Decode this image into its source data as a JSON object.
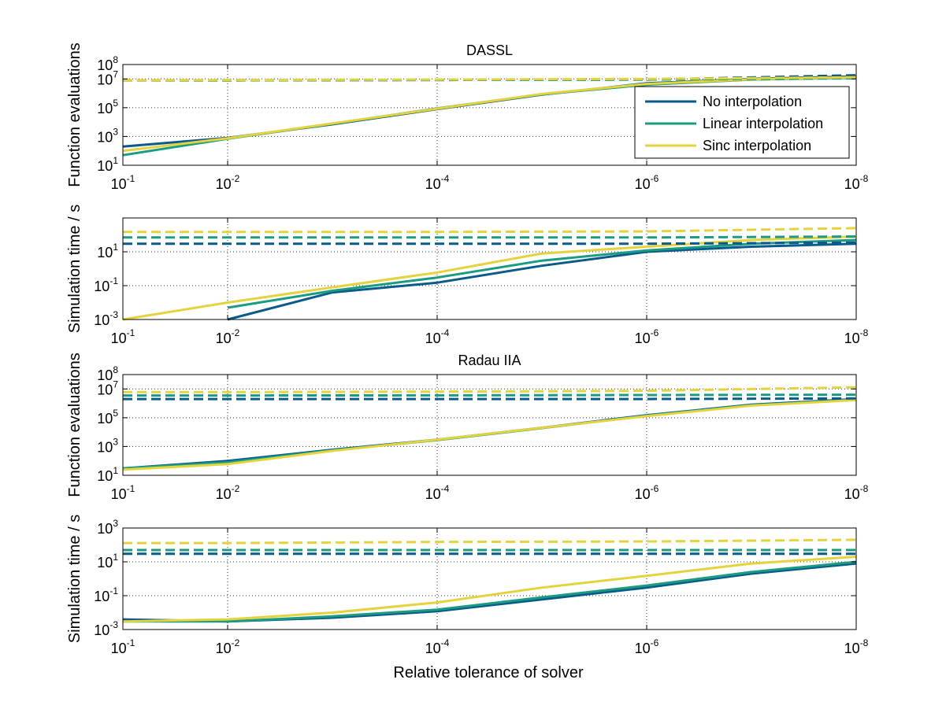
{
  "figure": {
    "xlabel": "Relative tolerance of solver",
    "colors": {
      "no": "#0b5a8c",
      "linear": "#1a9c82",
      "sinc": "#e3d33c"
    }
  },
  "chart_data": [
    {
      "type": "line",
      "title": "DASSL",
      "ylabel": "Function evaluations",
      "xscale": "log-reversed",
      "yscale": "log",
      "xlim": [
        0.1,
        1e-08
      ],
      "ylim": [
        10,
        100000000.0
      ],
      "xticks": [
        0.1,
        0.01,
        0.0001,
        1e-06,
        1e-08
      ],
      "xtick_labels": [
        "10^-1",
        "10^-2",
        "10^-4",
        "10^-6",
        "10^-8"
      ],
      "yticks": [
        10,
        1000,
        100000,
        10000000,
        100000000
      ],
      "ytick_labels": [
        "10^1",
        "10^3",
        "10^5",
        "10^7",
        "10^8"
      ],
      "grid": true,
      "legend": {
        "position": "right",
        "entries": [
          "No interpolation",
          "Linear interpolation",
          "Sinc interpolation"
        ]
      },
      "series": [
        {
          "name": "No interpolation",
          "x": [
            0.1,
            0.01,
            0.001,
            0.0001,
            1e-05,
            1e-06,
            1e-07,
            1e-08
          ],
          "values": [
            200,
            800,
            7000,
            80000,
            800000,
            5000000,
            10000000,
            15000000
          ]
        },
        {
          "name": "Linear interpolation",
          "x": [
            0.1,
            0.01,
            0.001,
            0.0001,
            1e-05,
            1e-06,
            1e-07,
            1e-08
          ],
          "values": [
            50,
            700,
            7500,
            90000,
            850000,
            4000000,
            9000000,
            12000000
          ]
        },
        {
          "name": "Sinc interpolation",
          "x": [
            0.1,
            0.01,
            0.001,
            0.0001,
            1e-05,
            1e-06,
            1e-07,
            1e-08
          ],
          "values": [
            100,
            750,
            8000,
            85000,
            900000,
            4500000,
            9500000,
            13000000
          ]
        },
        {
          "name": "No interpolation (dashed)",
          "style": "dashed",
          "x": [
            0.1,
            0.01,
            0.0001,
            1e-06,
            1e-08
          ],
          "values": [
            8000000,
            8000000,
            8500000,
            9000000,
            18000000
          ]
        },
        {
          "name": "Linear interpolation (dashed)",
          "style": "dashed",
          "x": [
            0.1,
            0.01,
            0.0001,
            1e-06,
            1e-08
          ],
          "values": [
            8000000,
            8000000,
            8500000,
            9000000,
            11000000
          ]
        },
        {
          "name": "Sinc interpolation (dashed)",
          "style": "dashed",
          "x": [
            0.1,
            0.01,
            0.0001,
            1e-06,
            1e-08
          ],
          "values": [
            8000000,
            8500000,
            9000000,
            10000000,
            13000000
          ]
        }
      ]
    },
    {
      "type": "line",
      "ylabel": "Simulation time / s",
      "xscale": "log-reversed",
      "yscale": "log",
      "xlim": [
        0.1,
        1e-08
      ],
      "ylim": [
        0.001,
        1000
      ],
      "xticks": [
        0.1,
        0.01,
        0.0001,
        1e-06,
        1e-08
      ],
      "xtick_labels": [
        "10^-1",
        "10^-2",
        "10^-4",
        "10^-6",
        "10^-8"
      ],
      "yticks": [
        0.001,
        0.1,
        10
      ],
      "ytick_labels": [
        "10^-3",
        "10^-1",
        "10^1"
      ],
      "grid": true,
      "series": [
        {
          "name": "No interpolation",
          "x": [
            0.01,
            0.001,
            0.0001,
            1e-05,
            1e-06,
            1e-07,
            1e-08
          ],
          "values": [
            0.001,
            0.04,
            0.15,
            1.5,
            10,
            20,
            30
          ]
        },
        {
          "name": "Linear interpolation",
          "x": [
            0.01,
            0.001,
            0.0001,
            1e-05,
            1e-06,
            1e-07,
            1e-08
          ],
          "values": [
            0.005,
            0.05,
            0.3,
            3,
            12,
            30,
            50
          ]
        },
        {
          "name": "Sinc interpolation",
          "x": [
            0.1,
            0.01,
            0.001,
            0.0001,
            1e-05,
            1e-06,
            1e-07,
            1e-08
          ],
          "values": [
            0.001,
            0.01,
            0.08,
            0.6,
            8,
            20,
            50,
            80
          ]
        },
        {
          "name": "No interpolation (dashed)",
          "style": "dashed",
          "x": [
            0.1,
            0.01,
            0.0001,
            1e-06,
            1e-08
          ],
          "values": [
            30,
            30,
            30,
            30,
            35
          ]
        },
        {
          "name": "Linear interpolation (dashed)",
          "style": "dashed",
          "x": [
            0.1,
            0.01,
            0.0001,
            1e-06,
            1e-08
          ],
          "values": [
            70,
            70,
            70,
            70,
            80
          ]
        },
        {
          "name": "Sinc interpolation (dashed)",
          "style": "dashed",
          "x": [
            0.1,
            0.01,
            0.0001,
            1e-06,
            1e-08
          ],
          "values": [
            150,
            150,
            150,
            160,
            250
          ]
        }
      ]
    },
    {
      "type": "line",
      "title": "Radau IIA",
      "ylabel": "Function evaluations",
      "xscale": "log-reversed",
      "yscale": "log",
      "xlim": [
        0.1,
        1e-08
      ],
      "ylim": [
        10,
        100000000.0
      ],
      "xticks": [
        0.1,
        0.01,
        0.0001,
        1e-06,
        1e-08
      ],
      "xtick_labels": [
        "10^-1",
        "10^-2",
        "10^-4",
        "10^-6",
        "10^-8"
      ],
      "yticks": [
        10,
        1000,
        100000,
        10000000,
        100000000
      ],
      "ytick_labels": [
        "10^1",
        "10^3",
        "10^5",
        "10^7",
        "10^8"
      ],
      "grid": true,
      "series": [
        {
          "name": "No interpolation",
          "x": [
            0.1,
            0.01,
            0.001,
            0.0001,
            1e-05,
            1e-06,
            1e-07,
            1e-08
          ],
          "values": [
            30,
            100,
            600,
            3000,
            20000,
            150000,
            800000,
            2000000
          ]
        },
        {
          "name": "Linear interpolation",
          "x": [
            0.1,
            0.01,
            0.001,
            0.0001,
            1e-05,
            1e-06,
            1e-07,
            1e-08
          ],
          "values": [
            30,
            80,
            550,
            2800,
            19000,
            140000,
            750000,
            1800000
          ]
        },
        {
          "name": "Sinc interpolation",
          "x": [
            0.1,
            0.01,
            0.001,
            0.0001,
            1e-05,
            1e-06,
            1e-07,
            1e-08
          ],
          "values": [
            25,
            60,
            500,
            3000,
            20000,
            130000,
            700000,
            1700000
          ]
        },
        {
          "name": "No interpolation (dashed)",
          "style": "dashed",
          "x": [
            0.1,
            0.01,
            0.0001,
            1e-06,
            1e-08
          ],
          "values": [
            2000000,
            2000000,
            2000000,
            2000000,
            2200000
          ]
        },
        {
          "name": "Linear interpolation (dashed)",
          "style": "dashed",
          "x": [
            0.1,
            0.01,
            0.0001,
            1e-06,
            1e-08
          ],
          "values": [
            3500000,
            3500000,
            3600000,
            3800000,
            4000000
          ]
        },
        {
          "name": "Sinc interpolation (dashed)",
          "style": "dashed",
          "x": [
            0.1,
            0.01,
            0.0001,
            1e-06,
            1e-08
          ],
          "values": [
            6000000,
            6000000,
            6500000,
            7500000,
            13000000
          ]
        }
      ]
    },
    {
      "type": "line",
      "ylabel": "Simulation time / s",
      "xscale": "log-reversed",
      "yscale": "log",
      "xlim": [
        0.1,
        1e-08
      ],
      "ylim": [
        0.001,
        1000
      ],
      "xticks": [
        0.1,
        0.01,
        0.0001,
        1e-06,
        1e-08
      ],
      "xtick_labels": [
        "10^-1",
        "10^-2",
        "10^-4",
        "10^-6",
        "10^-8"
      ],
      "yticks": [
        0.001,
        0.1,
        10,
        1000
      ],
      "ytick_labels": [
        "10^-3",
        "10^-1",
        "10^1",
        "10^3"
      ],
      "grid": true,
      "series": [
        {
          "name": "No interpolation",
          "x": [
            0.1,
            0.01,
            0.001,
            0.0001,
            1e-05,
            1e-06,
            1e-07,
            1e-08
          ],
          "values": [
            0.004,
            0.003,
            0.005,
            0.012,
            0.06,
            0.3,
            2,
            8
          ]
        },
        {
          "name": "Linear interpolation",
          "x": [
            0.1,
            0.01,
            0.001,
            0.0001,
            1e-05,
            1e-06,
            1e-07,
            1e-08
          ],
          "values": [
            0.003,
            0.003,
            0.006,
            0.015,
            0.08,
            0.4,
            2.5,
            10
          ]
        },
        {
          "name": "Sinc interpolation",
          "x": [
            0.1,
            0.01,
            0.001,
            0.0001,
            1e-05,
            1e-06,
            1e-07,
            1e-08
          ],
          "values": [
            0.003,
            0.004,
            0.01,
            0.04,
            0.3,
            1.5,
            8,
            20
          ]
        },
        {
          "name": "No interpolation (dashed)",
          "style": "dashed",
          "x": [
            0.1,
            0.01,
            0.0001,
            1e-06,
            1e-08
          ],
          "values": [
            30,
            30,
            30,
            30,
            30
          ]
        },
        {
          "name": "Linear interpolation (dashed)",
          "style": "dashed",
          "x": [
            0.1,
            0.01,
            0.0001,
            1e-06,
            1e-08
          ],
          "values": [
            50,
            50,
            50,
            50,
            50
          ]
        },
        {
          "name": "Sinc interpolation (dashed)",
          "style": "dashed",
          "x": [
            0.1,
            0.01,
            0.0001,
            1e-06,
            1e-08
          ],
          "values": [
            130,
            130,
            150,
            160,
            200
          ]
        }
      ]
    }
  ]
}
